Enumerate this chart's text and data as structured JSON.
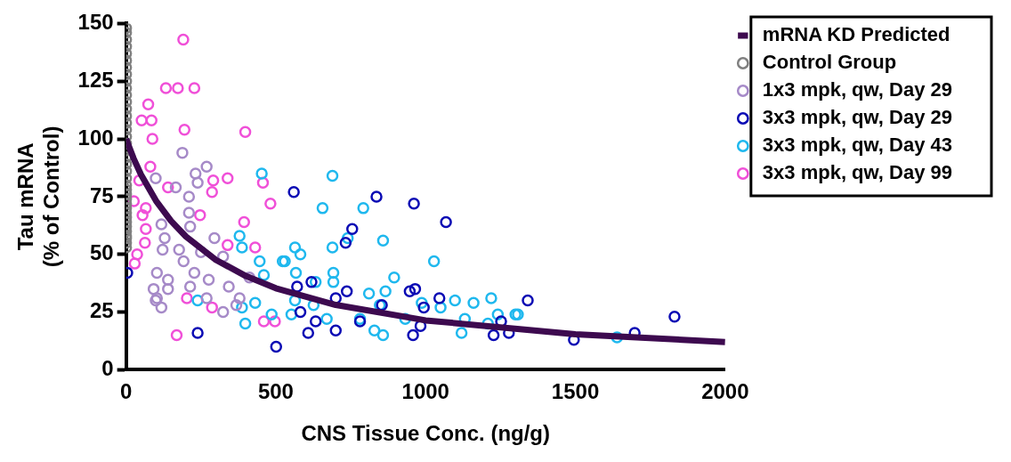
{
  "chart_data": {
    "type": "scatter",
    "xlabel": "CNS Tissue Conc. (ng/g)",
    "ylabel": "Tau mRNA\n(% of Control)",
    "xlim": [
      0,
      2000
    ],
    "xticks": [
      0,
      500,
      1000,
      1500,
      2000
    ],
    "ylim": [
      0,
      150
    ],
    "yticks": [
      0,
      25,
      50,
      75,
      100,
      125,
      150
    ],
    "grid": false,
    "legend": "right",
    "marker": "circle",
    "line_style": "solid",
    "series": [
      {
        "name": "mRNA KD Predicted",
        "type": "line",
        "marker": "none",
        "color": "#3d0a4f",
        "x": [
          0,
          25,
          50,
          100,
          150,
          200,
          300,
          400,
          500,
          700,
          1000,
          1500,
          2000
        ],
        "values": [
          100,
          91.6,
          84.5,
          73.2,
          64.5,
          57.7,
          47.6,
          40.6,
          35.3,
          28.1,
          21.4,
          15.4,
          12
        ]
      },
      {
        "name": "Control Group",
        "color": "#808080",
        "x": [
          0,
          0,
          0,
          0,
          0,
          0,
          0,
          0,
          0,
          0,
          0,
          0,
          0,
          0,
          0,
          0,
          0,
          0,
          0,
          0,
          0,
          0,
          0,
          0,
          0,
          0,
          0,
          0,
          0,
          0,
          0,
          0,
          0,
          0,
          0,
          0,
          0,
          0
        ],
        "values": [
          148,
          146,
          143,
          140,
          137,
          134,
          131,
          128,
          125,
          122,
          119,
          116,
          113,
          110,
          107,
          104,
          101,
          98,
          95,
          92,
          89,
          86,
          83,
          80,
          78,
          76,
          74,
          72,
          70,
          68,
          66,
          64,
          62,
          60,
          58,
          57,
          55,
          53
        ]
      },
      {
        "name": "1x3 mpk, qw, Day 29",
        "color": "#a68ac8",
        "x": [
          188,
          269,
          232,
          239,
          99,
          166,
          210,
          210,
          118,
          214,
          295,
          129,
          122,
          177,
          250,
          324,
          192,
          103,
          140,
          228,
          276,
          92,
          140,
          214,
          343,
          103,
          269,
          379,
          118,
          324,
          368,
          412,
          99
        ],
        "values": [
          94,
          88,
          85,
          81,
          83,
          79,
          75,
          68,
          63,
          62,
          57,
          57,
          52,
          52,
          51,
          49,
          47,
          42,
          39,
          42,
          39,
          35,
          35,
          36,
          36,
          31,
          31,
          31,
          27,
          25,
          28,
          40,
          30
        ]
      },
      {
        "name": "3x3 mpk, qw, Day 29",
        "color": "#0a0ab4",
        "x": [
          4,
          239,
          501,
          560,
          836,
          961,
          1068,
          755,
          733,
          571,
          619,
          737,
          947,
          965,
          1046,
          994,
          854,
          700,
          582,
          633,
          700,
          608,
          781,
          958,
          983,
          1227,
          1252,
          1278,
          1341,
          1495,
          1698,
          1831
        ],
        "values": [
          42,
          16,
          10,
          77,
          75,
          72,
          64,
          61,
          55,
          36,
          38,
          34,
          34,
          35,
          31,
          27,
          28,
          31,
          25,
          21,
          17,
          16,
          21,
          15,
          19,
          15,
          21,
          16,
          30,
          13,
          16,
          23
        ]
      },
      {
        "name": "3x3 mpk, qw, Day 43",
        "color": "#1fb8ee",
        "x": [
          689,
          656,
          792,
          740,
          858,
          689,
          564,
          582,
          530,
          1028,
          567,
          692,
          692,
          895,
          633,
          866,
          811,
          1098,
          1160,
          1219,
          1050,
          987,
          847,
          564,
          626,
          552,
          670,
          781,
          932,
          1241,
          1300,
          829,
          858,
          1120,
          1131,
          1208,
          1639,
          1308,
          453,
          379,
          387,
          446,
          523,
          460,
          239,
          387,
          398,
          431,
          486
        ],
        "values": [
          84,
          70,
          70,
          57,
          56,
          53,
          53,
          50,
          47,
          47,
          42,
          42,
          38,
          40,
          38,
          34,
          33,
          30,
          29,
          31,
          27,
          29,
          28,
          30,
          28,
          24,
          22,
          22,
          22,
          24,
          24,
          17,
          15,
          16,
          22,
          20,
          14,
          24,
          85,
          58,
          53,
          47,
          47,
          41,
          30,
          27,
          20,
          29,
          24
        ]
      },
      {
        "name": "3x3 mpk, qw, Day 99",
        "color": "#f050d8",
        "x": [
          191,
          133,
          173,
          228,
          74,
          52,
          85,
          195,
          398,
          88,
          81,
          44,
          140,
          287,
          339,
          291,
          457,
          482,
          26,
          66,
          55,
          247,
          394,
          66,
          63,
          339,
          431,
          37,
          29,
          203,
          287,
          169,
          497,
          460
        ],
        "values": [
          143,
          122,
          122,
          122,
          115,
          108,
          108,
          104,
          103,
          100,
          88,
          82,
          79,
          77,
          83,
          82,
          81,
          72,
          73,
          70,
          67,
          67,
          64,
          61,
          55,
          54,
          53,
          50,
          46,
          31,
          27,
          15,
          21,
          21
        ]
      }
    ]
  }
}
